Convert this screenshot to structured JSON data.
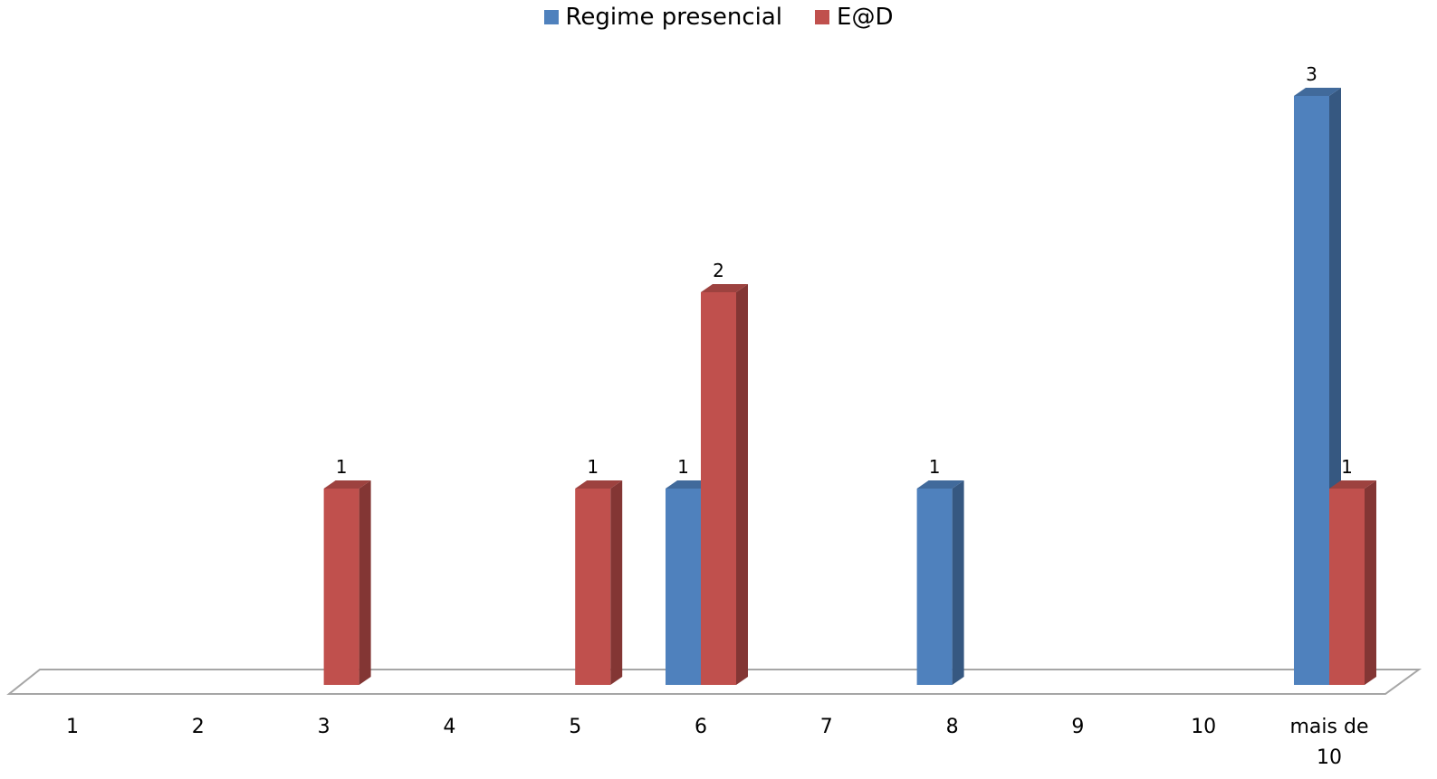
{
  "chart_data": {
    "type": "bar",
    "categories": [
      "1",
      "2",
      "3",
      "4",
      "5",
      "6",
      "7",
      "8",
      "9",
      "10",
      "mais de 10"
    ],
    "series": [
      {
        "name": "Regime presencial",
        "values": [
          null,
          null,
          null,
          null,
          null,
          1,
          null,
          1,
          null,
          null,
          3
        ],
        "color": "#4F81BD"
      },
      {
        "name": "E@D",
        "values": [
          null,
          null,
          1,
          null,
          1,
          2,
          null,
          null,
          null,
          null,
          1
        ],
        "color": "#C0504D"
      }
    ],
    "ylim": [
      0,
      3
    ],
    "grid": false,
    "legend_position": "top"
  }
}
